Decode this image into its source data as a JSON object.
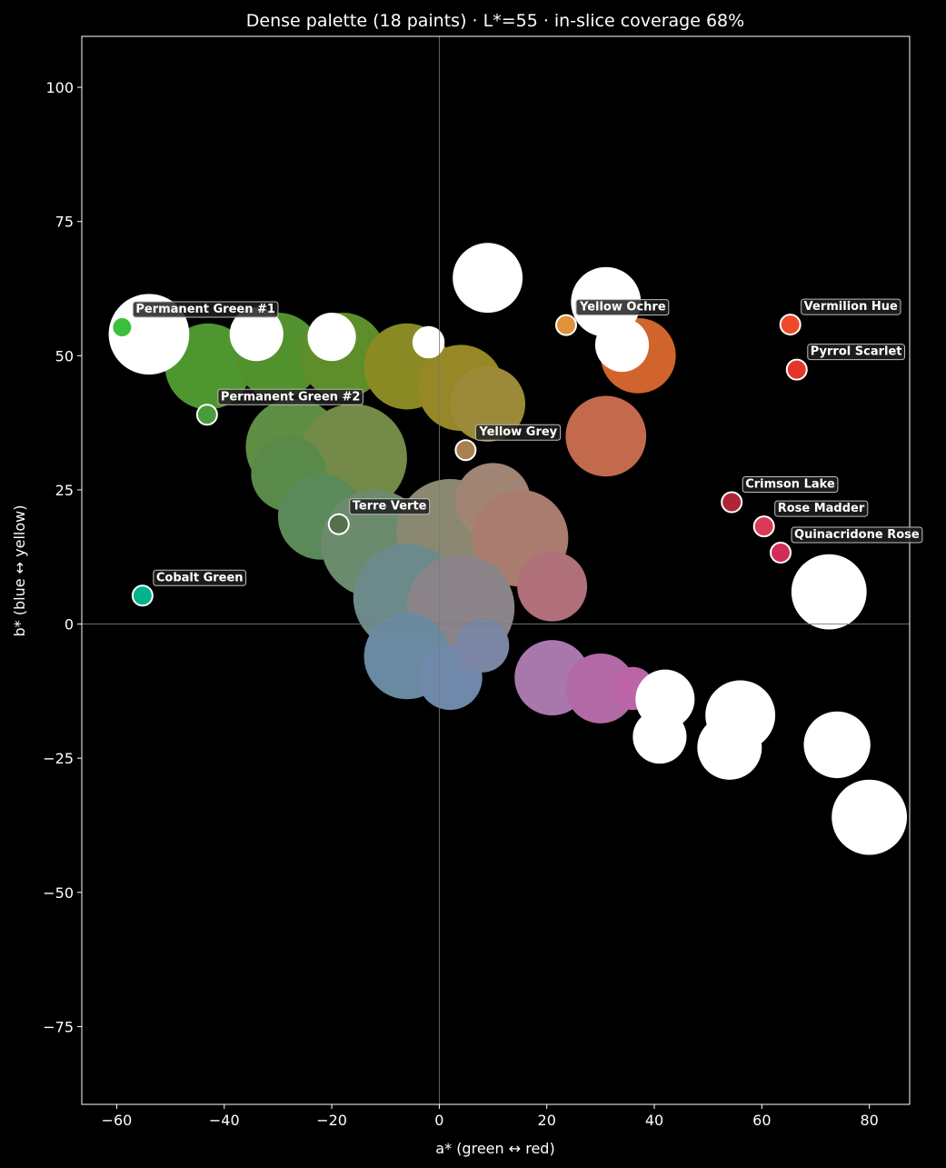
{
  "chart_data": {
    "type": "scatter",
    "title": "Dense palette (18 paints)  ·  L*=55  ·  in-slice coverage 68%",
    "xlabel": "a* (green ↔ red)",
    "ylabel": "b* (blue ↔ yellow)",
    "xlim": [
      -66.5,
      87.5
    ],
    "ylim": [
      -89.5,
      109.5
    ],
    "xticks": [
      -60,
      -40,
      -20,
      0,
      20,
      40,
      60,
      80
    ],
    "yticks": [
      -75,
      -50,
      -25,
      0,
      25,
      50,
      75,
      100
    ],
    "xtick_labels": [
      "−60",
      "−40",
      "−20",
      "0",
      "20",
      "40",
      "60",
      "80"
    ],
    "ytick_labels": [
      "−75",
      "−50",
      "−25",
      "0",
      "25",
      "50",
      "75",
      "100"
    ],
    "grid": false,
    "zero_lines": true,
    "background": "#000000",
    "paints": [
      {
        "name": "Permanent Green #1",
        "a": -59,
        "b": 55.3,
        "color": "#3cbf3a"
      },
      {
        "name": "Permanent Green #2",
        "a": -43.2,
        "b": 39,
        "color": "#4a9a3e"
      },
      {
        "name": "Terre Verte",
        "a": -18.7,
        "b": 18.6,
        "color": "#56704e"
      },
      {
        "name": "Cobalt Green",
        "a": -55.2,
        "b": 5.3,
        "color": "#00b38a"
      },
      {
        "name": "Yellow Ochre",
        "a": 23.6,
        "b": 55.7,
        "color": "#e0913a"
      },
      {
        "name": "Yellow Grey",
        "a": 4.9,
        "b": 32.4,
        "color": "#a8814e"
      },
      {
        "name": "Vermilion Hue",
        "a": 65.3,
        "b": 55.8,
        "color": "#f0482a"
      },
      {
        "name": "Pyrrol Scarlet",
        "a": 66.5,
        "b": 47.4,
        "color": "#e53428"
      },
      {
        "name": "Crimson Lake",
        "a": 54.4,
        "b": 22.7,
        "color": "#b02438"
      },
      {
        "name": "Rose Madder",
        "a": 60.4,
        "b": 18.2,
        "color": "#d93a55"
      },
      {
        "name": "Quinacridone Rose",
        "a": 63.5,
        "b": 13.3,
        "color": "#cf2e57"
      }
    ],
    "gamut_blobs": [
      {
        "a": -43,
        "b": 48,
        "r": 8,
        "color": "#4e9630"
      },
      {
        "a": -30,
        "b": 50,
        "r": 8,
        "color": "#52922e"
      },
      {
        "a": -18,
        "b": 50,
        "r": 8,
        "color": "#5e8e2a"
      },
      {
        "a": -6,
        "b": 48,
        "r": 8,
        "color": "#8a8a24"
      },
      {
        "a": 4,
        "b": 44,
        "r": 8,
        "color": "#968826"
      },
      {
        "a": 9,
        "b": 41,
        "r": 7,
        "color": "#9c8a38"
      },
      {
        "a": -27,
        "b": 33,
        "r": 9,
        "color": "#5e8e44"
      },
      {
        "a": -16,
        "b": 31,
        "r": 10,
        "color": "#748a48"
      },
      {
        "a": -28,
        "b": 28,
        "r": 7,
        "color": "#5a8a4a"
      },
      {
        "a": -22,
        "b": 20,
        "r": 8,
        "color": "#5a8a5a"
      },
      {
        "a": -12,
        "b": 15,
        "r": 10,
        "color": "#6c8a6c"
      },
      {
        "a": 2,
        "b": 17,
        "r": 10,
        "color": "#8a8870"
      },
      {
        "a": 10,
        "b": 23,
        "r": 7,
        "color": "#a08474"
      },
      {
        "a": 15,
        "b": 16,
        "r": 9,
        "color": "#aa7c70"
      },
      {
        "a": -6,
        "b": 5,
        "r": 10,
        "color": "#6c8a8a"
      },
      {
        "a": 4,
        "b": 3,
        "r": 10,
        "color": "#8a8488"
      },
      {
        "a": -6,
        "b": -6,
        "r": 8,
        "color": "#6a8aa2"
      },
      {
        "a": 2,
        "b": -10,
        "r": 6,
        "color": "#7088aa"
      },
      {
        "a": 8,
        "b": -4,
        "r": 5,
        "color": "#7a86a4"
      },
      {
        "a": 21,
        "b": 7,
        "r": 6.5,
        "color": "#b0707a"
      },
      {
        "a": 21,
        "b": -10,
        "r": 7,
        "color": "#a878ac"
      },
      {
        "a": 30,
        "b": -12,
        "r": 6.5,
        "color": "#b26aa6"
      },
      {
        "a": 36,
        "b": -12,
        "r": 4,
        "color": "#bc64a8"
      },
      {
        "a": 31,
        "b": 35,
        "r": 7.5,
        "color": "#c46a4c"
      },
      {
        "a": 37,
        "b": 50,
        "r": 7,
        "color": "#d0642c"
      },
      {
        "a": -55,
        "b": 52,
        "r": 5,
        "color": "#2c9a2c"
      }
    ],
    "white_blobs": [
      {
        "a": -54,
        "b": 54,
        "r": 7.5
      },
      {
        "a": -34,
        "b": 54,
        "r": 5
      },
      {
        "a": -20,
        "b": 53.5,
        "r": 4.5
      },
      {
        "a": -2,
        "b": 52.5,
        "r": 3
      },
      {
        "a": 9,
        "b": 64.5,
        "r": 6.5
      },
      {
        "a": 31,
        "b": 60,
        "r": 6.5
      },
      {
        "a": 34,
        "b": 52,
        "r": 5
      },
      {
        "a": 72.5,
        "b": 6,
        "r": 7
      },
      {
        "a": 42,
        "b": -14,
        "r": 5.5
      },
      {
        "a": 41,
        "b": -21,
        "r": 5
      },
      {
        "a": 56,
        "b": -17,
        "r": 6.5
      },
      {
        "a": 54,
        "b": -23,
        "r": 6
      },
      {
        "a": 74,
        "b": -22.5,
        "r": 6.2
      },
      {
        "a": 80,
        "b": -36,
        "r": 7
      }
    ]
  }
}
